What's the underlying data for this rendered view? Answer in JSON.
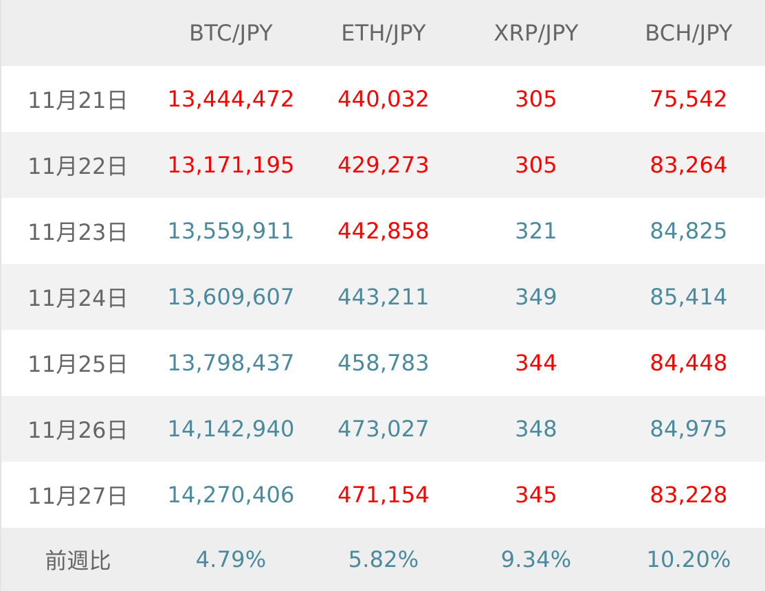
{
  "colors": {
    "header_bg": "#eeeeee",
    "row_alt_bg": "#f2f2f2",
    "row_bg": "#ffffff",
    "label_text": "#666666",
    "red": "#ff0000",
    "teal": "#4a8a9c"
  },
  "header": {
    "corner": "",
    "columns": [
      "BTC/JPY",
      "ETH/JPY",
      "XRP/JPY",
      "BCH/JPY"
    ]
  },
  "rows": [
    {
      "date": "11月21日",
      "values": [
        "13,444,472",
        "440,032",
        "305",
        "75,542"
      ],
      "colors": [
        "red",
        "red",
        "red",
        "red"
      ]
    },
    {
      "date": "11月22日",
      "values": [
        "13,171,195",
        "429,273",
        "305",
        "83,264"
      ],
      "colors": [
        "red",
        "red",
        "red",
        "red"
      ]
    },
    {
      "date": "11月23日",
      "values": [
        "13,559,911",
        "442,858",
        "321",
        "84,825"
      ],
      "colors": [
        "teal",
        "red",
        "teal",
        "teal"
      ]
    },
    {
      "date": "11月24日",
      "values": [
        "13,609,607",
        "443,211",
        "349",
        "85,414"
      ],
      "colors": [
        "teal",
        "teal",
        "teal",
        "teal"
      ]
    },
    {
      "date": "11月25日",
      "values": [
        "13,798,437",
        "458,783",
        "344",
        "84,448"
      ],
      "colors": [
        "teal",
        "teal",
        "red",
        "red"
      ]
    },
    {
      "date": "11月26日",
      "values": [
        "14,142,940",
        "473,027",
        "348",
        "84,975"
      ],
      "colors": [
        "teal",
        "teal",
        "teal",
        "teal"
      ]
    },
    {
      "date": "11月27日",
      "values": [
        "14,270,406",
        "471,154",
        "345",
        "83,228"
      ],
      "colors": [
        "teal",
        "red",
        "red",
        "red"
      ]
    }
  ],
  "footer": {
    "label": "前週比",
    "values": [
      "4.79%",
      "5.82%",
      "9.34%",
      "10.20%"
    ]
  }
}
